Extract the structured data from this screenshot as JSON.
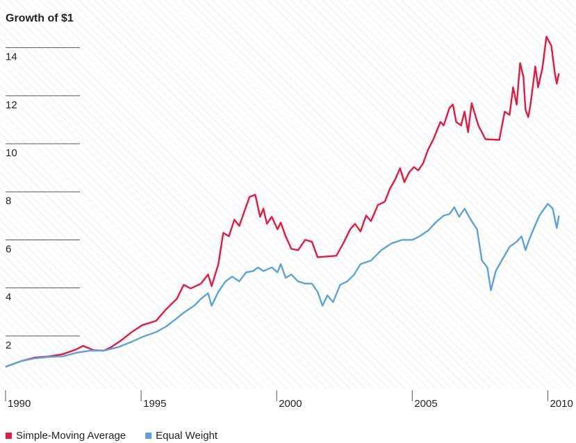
{
  "chart_data": {
    "type": "line",
    "title": "Growth of $1",
    "xlim": [
      1990,
      2010.45
    ],
    "xticks": [
      1990,
      1995,
      2000,
      2005,
      2010
    ],
    "ylim": [
      -0.2,
      15
    ],
    "yticks": [
      2,
      4,
      6,
      8,
      10,
      12,
      14
    ],
    "grid": true,
    "legend": "bottom",
    "series": [
      {
        "name": "Simple-Moving Average",
        "color": "#e8173e",
        "x": [
          1990.0,
          1990.56,
          1991.07,
          1991.59,
          1992.1,
          1992.61,
          1992.86,
          1993.25,
          1993.63,
          1993.89,
          1994.27,
          1994.65,
          1995.04,
          1995.55,
          1995.93,
          1996.32,
          1996.57,
          1996.83,
          1997.21,
          1997.47,
          1997.6,
          1997.85,
          1998.03,
          1998.24,
          1998.44,
          1998.62,
          1998.8,
          1999.0,
          1999.21,
          1999.39,
          1999.51,
          1999.64,
          1999.82,
          2000.03,
          2000.15,
          2000.33,
          2000.54,
          2000.79,
          2001.05,
          2001.3,
          2001.51,
          2002.2,
          2002.46,
          2002.71,
          2002.89,
          2003.09,
          2003.3,
          2003.48,
          2003.73,
          2003.99,
          2004.17,
          2004.37,
          2004.55,
          2004.71,
          2004.88,
          2005.06,
          2005.22,
          2005.4,
          2005.58,
          2005.78,
          2006.04,
          2006.16,
          2006.37,
          2006.5,
          2006.62,
          2006.8,
          2006.93,
          2007.06,
          2007.19,
          2007.44,
          2007.7,
          2008.21,
          2008.41,
          2008.59,
          2008.72,
          2008.85,
          2008.98,
          2009.1,
          2009.18,
          2009.28,
          2009.36,
          2009.54,
          2009.64,
          2009.8,
          2009.95,
          2010.13,
          2010.26,
          2010.33,
          2010.41
        ],
        "values": [
          0.72,
          0.95,
          1.1,
          1.15,
          1.24,
          1.44,
          1.59,
          1.41,
          1.39,
          1.53,
          1.82,
          2.16,
          2.45,
          2.63,
          3.12,
          3.55,
          4.13,
          3.98,
          4.18,
          4.56,
          4.07,
          4.99,
          6.29,
          6.15,
          6.84,
          6.58,
          7.16,
          7.79,
          7.88,
          6.96,
          7.3,
          6.67,
          6.96,
          6.44,
          6.72,
          6.15,
          5.63,
          5.57,
          6.0,
          5.92,
          5.28,
          5.34,
          5.86,
          6.44,
          6.67,
          6.35,
          7.01,
          6.78,
          7.45,
          7.59,
          8.11,
          8.51,
          8.98,
          8.4,
          8.8,
          9.03,
          8.89,
          9.18,
          9.75,
          10.19,
          10.91,
          10.76,
          11.49,
          11.63,
          10.91,
          10.76,
          11.34,
          10.48,
          11.69,
          10.76,
          10.19,
          10.16,
          11.34,
          11.2,
          12.35,
          11.63,
          13.36,
          12.79,
          11.4,
          11.11,
          11.63,
          13.22,
          12.35,
          13.13,
          14.46,
          14.08,
          12.93,
          12.5,
          12.93
        ]
      },
      {
        "name": "Equal Weight",
        "color": "#5aa2dc",
        "x": [
          1990.0,
          1990.56,
          1991.07,
          1991.59,
          1992.1,
          1992.61,
          1993.12,
          1993.63,
          1994.14,
          1994.65,
          1995.04,
          1995.55,
          1995.93,
          1996.32,
          1996.57,
          1996.96,
          1997.21,
          1997.47,
          1997.6,
          1997.85,
          1998.11,
          1998.36,
          1998.62,
          1998.87,
          1999.13,
          1999.31,
          1999.51,
          1999.82,
          2000.03,
          2000.15,
          2000.33,
          2000.54,
          2000.79,
          2001.05,
          2001.3,
          2001.51,
          2001.69,
          2001.87,
          2002.08,
          2002.34,
          2002.6,
          2002.86,
          2003.09,
          2003.48,
          2003.86,
          2004.25,
          2004.63,
          2005.01,
          2005.27,
          2005.58,
          2005.86,
          2006.16,
          2006.37,
          2006.55,
          2006.73,
          2006.93,
          2007.19,
          2007.39,
          2007.57,
          2007.77,
          2007.9,
          2008.08,
          2008.34,
          2008.59,
          2008.85,
          2009.03,
          2009.18,
          2009.31,
          2009.49,
          2009.69,
          2009.87,
          2010.0,
          2010.18,
          2010.33,
          2010.41
        ],
        "values": [
          0.72,
          0.95,
          1.07,
          1.13,
          1.15,
          1.3,
          1.39,
          1.39,
          1.53,
          1.76,
          1.96,
          2.16,
          2.4,
          2.74,
          2.97,
          3.26,
          3.55,
          3.78,
          3.26,
          3.84,
          4.27,
          4.47,
          4.27,
          4.65,
          4.7,
          4.85,
          4.7,
          4.85,
          4.65,
          4.99,
          4.42,
          4.56,
          4.27,
          4.18,
          4.18,
          3.84,
          3.26,
          3.69,
          3.41,
          4.13,
          4.27,
          4.56,
          4.99,
          5.14,
          5.57,
          5.86,
          6.0,
          6.0,
          6.15,
          6.38,
          6.72,
          7.01,
          7.07,
          7.36,
          6.96,
          7.3,
          6.78,
          6.44,
          5.14,
          4.85,
          3.9,
          4.7,
          5.22,
          5.71,
          5.92,
          6.15,
          5.57,
          6.0,
          6.49,
          7.01,
          7.3,
          7.5,
          7.3,
          6.49,
          7.01
        ]
      }
    ]
  }
}
